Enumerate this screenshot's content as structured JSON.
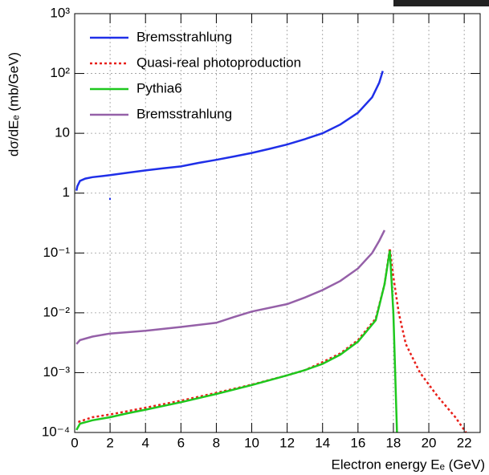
{
  "chart_data": {
    "type": "line",
    "ylabel": "dσ/dEₑ (mb/GeV)",
    "xlabel": "Electron energy Eₑ (GeV)",
    "log_y": true,
    "grid": true,
    "legend": "upper left",
    "xlim": [
      0,
      22.9
    ],
    "ylim": [
      0.0001,
      1000
    ],
    "xticks": [
      0,
      2,
      4,
      6,
      8,
      10,
      12,
      14,
      16,
      18,
      20,
      22
    ],
    "yticks": [
      {
        "value": 1000,
        "label": "10³"
      },
      {
        "value": 100,
        "label": "10²"
      },
      10,
      1,
      {
        "value": 0.1,
        "label": "10⁻¹"
      },
      {
        "value": 0.01,
        "label": "10⁻²"
      },
      {
        "value": 0.001,
        "label": "10⁻³"
      },
      {
        "value": 0.0001,
        "label": "10⁻⁴"
      }
    ],
    "series": [
      {
        "name": "Bremsstrahlung",
        "color": "#1f2fe8",
        "style": "solid",
        "x": [
          0.1,
          0.15,
          0.3,
          0.6,
          1,
          2,
          3,
          4,
          5,
          6,
          7,
          8,
          9,
          10,
          11,
          12,
          13,
          14,
          15,
          16,
          16.8,
          17.2,
          17.4,
          1.9,
          1.95
        ],
        "values": [
          1.1,
          1.3,
          1.6,
          1.75,
          1.85,
          2.0,
          2.2,
          2.4,
          2.6,
          2.8,
          3.2,
          3.6,
          4.1,
          4.7,
          5.5,
          6.5,
          8,
          10,
          14,
          22,
          40,
          70,
          110,
          null,
          0.8
        ]
      },
      {
        "name": "Quasi-real photoproduction",
        "color": "#e8201a",
        "style": "dotted",
        "x": [
          0.2,
          1,
          2,
          4,
          6,
          8,
          10,
          12,
          13,
          14,
          15,
          16,
          17,
          17.5,
          17.8,
          18,
          18.3,
          18.7,
          19.5,
          20.5,
          21.5,
          22.1
        ],
        "values": [
          0.00015,
          0.00018,
          0.0002,
          0.00026,
          0.00034,
          0.00046,
          0.00063,
          0.0009,
          0.0011,
          0.0015,
          0.0021,
          0.0035,
          0.008,
          0.03,
          0.12,
          0.04,
          0.01,
          0.003,
          0.001,
          0.0004,
          0.00018,
          0.0001
        ]
      },
      {
        "name": "Pythia6",
        "color": "#1ec81e",
        "style": "solid",
        "x": [
          0.1,
          0.3,
          1,
          2,
          3,
          4,
          6,
          8,
          10,
          12,
          13,
          14,
          15,
          16,
          17,
          17.5,
          17.8,
          18,
          18.2
        ],
        "values": [
          0.00011,
          0.00014,
          0.00016,
          0.00018,
          0.00021,
          0.00024,
          0.00032,
          0.00044,
          0.00062,
          0.0009,
          0.0011,
          0.0014,
          0.002,
          0.0033,
          0.0075,
          0.03,
          0.11,
          0.01,
          0.0001
        ]
      },
      {
        "name": "Bremsstrahlung",
        "color": "#9560a8",
        "style": "solid",
        "x": [
          0.1,
          0.3,
          1,
          2,
          4,
          6,
          8,
          9,
          10,
          12,
          13,
          14,
          15,
          16,
          16.8,
          17.2,
          17.5
        ],
        "values": [
          0.003,
          0.0035,
          0.004,
          0.0045,
          0.005,
          0.0058,
          0.0068,
          0.0085,
          0.0105,
          0.014,
          0.018,
          0.024,
          0.034,
          0.055,
          0.1,
          0.16,
          0.24
        ]
      }
    ]
  }
}
